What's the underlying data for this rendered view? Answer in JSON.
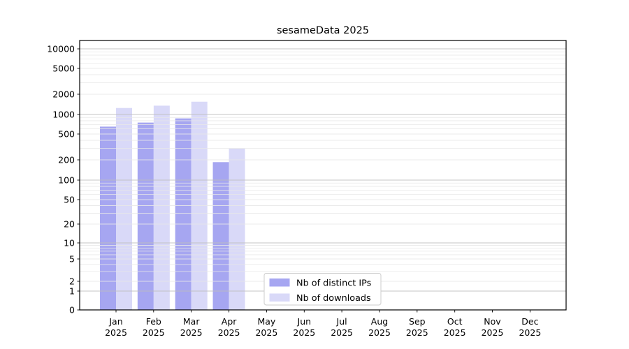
{
  "chart_data": {
    "type": "bar",
    "title": "sesameData 2025",
    "months": [
      "Jan",
      "Feb",
      "Mar",
      "Apr",
      "May",
      "Jun",
      "Jul",
      "Aug",
      "Sep",
      "Oct",
      "Nov",
      "Dec"
    ],
    "year": "2025",
    "series": [
      {
        "name": "Nb of distinct IPs",
        "color": "#a6a6f1",
        "values": [
          650,
          750,
          870,
          185,
          0,
          0,
          0,
          0,
          0,
          0,
          0,
          0
        ]
      },
      {
        "name": "Nb of downloads",
        "color": "#d9d9f8",
        "values": [
          1250,
          1350,
          1550,
          300,
          0,
          0,
          0,
          0,
          0,
          0,
          0,
          0
        ]
      }
    ],
    "yscale": "symlog",
    "yticks": [
      0,
      1,
      2,
      5,
      10,
      20,
      50,
      100,
      200,
      500,
      1000,
      2000,
      5000,
      10000
    ],
    "ylim": [
      0,
      13000
    ],
    "grid": "both",
    "legend_position": "lower center",
    "colors": {
      "major_grid": "#bdbdbd",
      "minor_grid": "#e8e8e8",
      "spine": "#000000",
      "legend_border": "#cccccc",
      "legend_bg": "#ffffff"
    }
  }
}
